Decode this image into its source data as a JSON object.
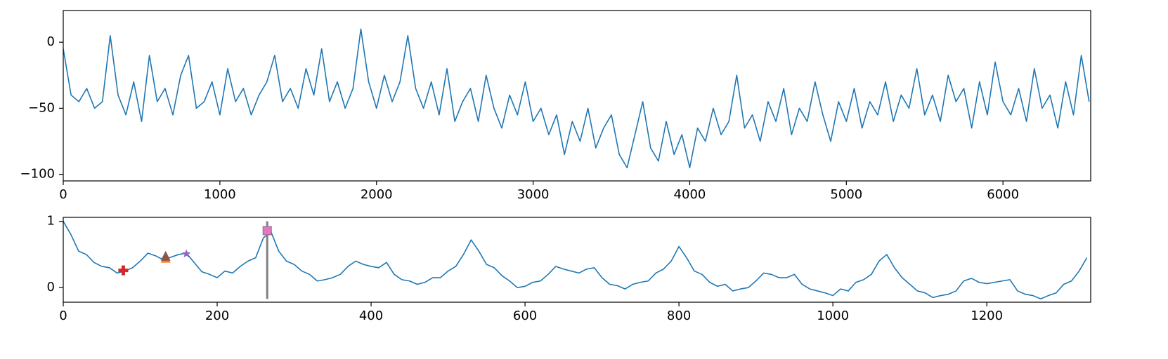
{
  "chart_data": [
    {
      "type": "line",
      "x": [
        0,
        50,
        100,
        150,
        200,
        250,
        300,
        350,
        400,
        450,
        500,
        550,
        600,
        650,
        700,
        750,
        800,
        850,
        900,
        950,
        1000,
        1050,
        1100,
        1150,
        1200,
        1250,
        1300,
        1350,
        1400,
        1450,
        1500,
        1550,
        1600,
        1650,
        1700,
        1750,
        1800,
        1850,
        1900,
        1950,
        2000,
        2050,
        2100,
        2150,
        2200,
        2250,
        2300,
        2350,
        2400,
        2450,
        2500,
        2550,
        2600,
        2650,
        2700,
        2750,
        2800,
        2850,
        2900,
        2950,
        3000,
        3050,
        3100,
        3150,
        3200,
        3250,
        3300,
        3350,
        3400,
        3450,
        3500,
        3550,
        3600,
        3650,
        3700,
        3750,
        3800,
        3850,
        3900,
        3950,
        4000,
        4050,
        4100,
        4150,
        4200,
        4250,
        4300,
        4350,
        4400,
        4450,
        4500,
        4550,
        4600,
        4650,
        4700,
        4750,
        4800,
        4850,
        4900,
        4950,
        5000,
        5050,
        5100,
        5150,
        5200,
        5250,
        5300,
        5350,
        5400,
        5450,
        5500,
        5550,
        5600,
        5650,
        5700,
        5750,
        5800,
        5850,
        5900,
        5950,
        6000,
        6050,
        6100,
        6150,
        6200,
        6250,
        6300,
        6350,
        6400,
        6450,
        6500,
        6550
      ],
      "series": [
        {
          "color": "#1f77b4",
          "values": [
            -5,
            -40,
            -45,
            -35,
            -50,
            -45,
            5,
            -40,
            -55,
            -30,
            -60,
            -10,
            -45,
            -35,
            -55,
            -25,
            -10,
            -50,
            -45,
            -30,
            -55,
            -20,
            -45,
            -35,
            -55,
            -40,
            -30,
            -10,
            -45,
            -35,
            -50,
            -20,
            -40,
            -5,
            -45,
            -30,
            -50,
            -35,
            10,
            -30,
            -50,
            -25,
            -45,
            -30,
            5,
            -35,
            -50,
            -30,
            -55,
            -20,
            -60,
            -45,
            -35,
            -60,
            -25,
            -50,
            -65,
            -40,
            -55,
            -30,
            -60,
            -50,
            -70,
            -55,
            -85,
            -60,
            -75,
            -50,
            -80,
            -65,
            -55,
            -85,
            -95,
            -70,
            -45,
            -80,
            -90,
            -60,
            -85,
            -70,
            -95,
            -65,
            -75,
            -50,
            -70,
            -60,
            -25,
            -65,
            -55,
            -75,
            -45,
            -60,
            -35,
            -70,
            -50,
            -60,
            -30,
            -55,
            -75,
            -45,
            -60,
            -35,
            -65,
            -45,
            -55,
            -30,
            -60,
            -40,
            -50,
            -20,
            -55,
            -40,
            -60,
            -25,
            -45,
            -35,
            -65,
            -30,
            -55,
            -15,
            -45,
            -55,
            -35,
            -60,
            -20,
            -50,
            -40,
            -65,
            -30,
            -55,
            -10,
            -45
          ]
        }
      ],
      "xlim": [
        0,
        6560
      ],
      "ylim": [
        -105,
        24
      ],
      "xticks": [
        0,
        1000,
        2000,
        3000,
        4000,
        5000,
        6000
      ],
      "yticks": [
        {
          "value": -100,
          "label": "−100"
        },
        {
          "value": -50,
          "label": "−50"
        },
        0
      ]
    },
    {
      "type": "line",
      "x": [
        0,
        10,
        20,
        30,
        40,
        50,
        60,
        70,
        80,
        90,
        100,
        110,
        120,
        130,
        140,
        150,
        160,
        170,
        180,
        190,
        200,
        210,
        220,
        230,
        240,
        250,
        260,
        270,
        280,
        290,
        300,
        310,
        320,
        330,
        340,
        350,
        360,
        370,
        380,
        390,
        400,
        410,
        420,
        430,
        440,
        450,
        460,
        470,
        480,
        490,
        500,
        510,
        520,
        530,
        540,
        550,
        560,
        570,
        580,
        590,
        600,
        610,
        620,
        630,
        640,
        650,
        660,
        670,
        680,
        690,
        700,
        710,
        720,
        730,
        740,
        750,
        760,
        770,
        780,
        790,
        800,
        810,
        820,
        830,
        840,
        850,
        860,
        870,
        880,
        890,
        900,
        910,
        920,
        930,
        940,
        950,
        960,
        970,
        980,
        990,
        1000,
        1010,
        1020,
        1030,
        1040,
        1050,
        1060,
        1070,
        1080,
        1090,
        1100,
        1110,
        1120,
        1130,
        1140,
        1150,
        1160,
        1170,
        1180,
        1190,
        1200,
        1210,
        1220,
        1230,
        1240,
        1250,
        1260,
        1270,
        1280,
        1290,
        1300,
        1310,
        1320,
        1330
      ],
      "series": [
        {
          "color": "#1f77b4",
          "values": [
            1.0,
            0.8,
            0.55,
            0.5,
            0.38,
            0.32,
            0.3,
            0.22,
            0.25,
            0.3,
            0.4,
            0.52,
            0.48,
            0.42,
            0.46,
            0.5,
            0.52,
            0.38,
            0.24,
            0.2,
            0.15,
            0.25,
            0.22,
            0.32,
            0.4,
            0.45,
            0.75,
            0.84,
            0.55,
            0.4,
            0.35,
            0.25,
            0.2,
            0.1,
            0.12,
            0.15,
            0.2,
            0.32,
            0.4,
            0.35,
            0.32,
            0.3,
            0.38,
            0.2,
            0.12,
            0.1,
            0.05,
            0.08,
            0.15,
            0.15,
            0.25,
            0.32,
            0.5,
            0.72,
            0.55,
            0.35,
            0.3,
            0.18,
            0.1,
            0.0,
            0.02,
            0.08,
            0.1,
            0.2,
            0.32,
            0.28,
            0.25,
            0.22,
            0.28,
            0.3,
            0.15,
            0.05,
            0.03,
            -0.02,
            0.05,
            0.08,
            0.1,
            0.22,
            0.28,
            0.4,
            0.62,
            0.45,
            0.25,
            0.2,
            0.08,
            0.02,
            0.05,
            -0.05,
            -0.02,
            0.0,
            0.1,
            0.22,
            0.2,
            0.15,
            0.15,
            0.2,
            0.05,
            -0.02,
            -0.05,
            -0.08,
            -0.12,
            -0.02,
            -0.05,
            0.08,
            0.12,
            0.2,
            0.4,
            0.5,
            0.3,
            0.15,
            0.05,
            -0.05,
            -0.08,
            -0.15,
            -0.12,
            -0.1,
            -0.05,
            0.1,
            0.14,
            0.08,
            0.06,
            0.08,
            0.1,
            0.12,
            -0.05,
            -0.1,
            -0.12,
            -0.17,
            -0.12,
            -0.08,
            0.05,
            0.1,
            0.25,
            0.45
          ]
        }
      ],
      "markers": [
        {
          "x": 78,
          "y": 0.26,
          "color": "#d62728",
          "symbol": "plus"
        },
        {
          "x": 133,
          "y": 0.44,
          "color": "#ff7f0e",
          "symbol": "triangle"
        },
        {
          "x": 133,
          "y": 0.47,
          "color": "#8c564b",
          "symbol": "triangle"
        },
        {
          "x": 160,
          "y": 0.51,
          "color": "#9467bd",
          "symbol": "star"
        },
        {
          "x": 265,
          "y": 0.86,
          "color": "#e377c2",
          "symbol": "square"
        }
      ],
      "vline": {
        "x": 265,
        "ymin": -0.17,
        "ymax": 1.0,
        "color": "#808080"
      },
      "xlim": [
        0,
        1335
      ],
      "ylim": [
        -0.22,
        1.06
      ],
      "xticks": [
        0,
        200,
        400,
        600,
        800,
        1000,
        1200
      ],
      "yticks": [
        0,
        1
      ]
    }
  ]
}
